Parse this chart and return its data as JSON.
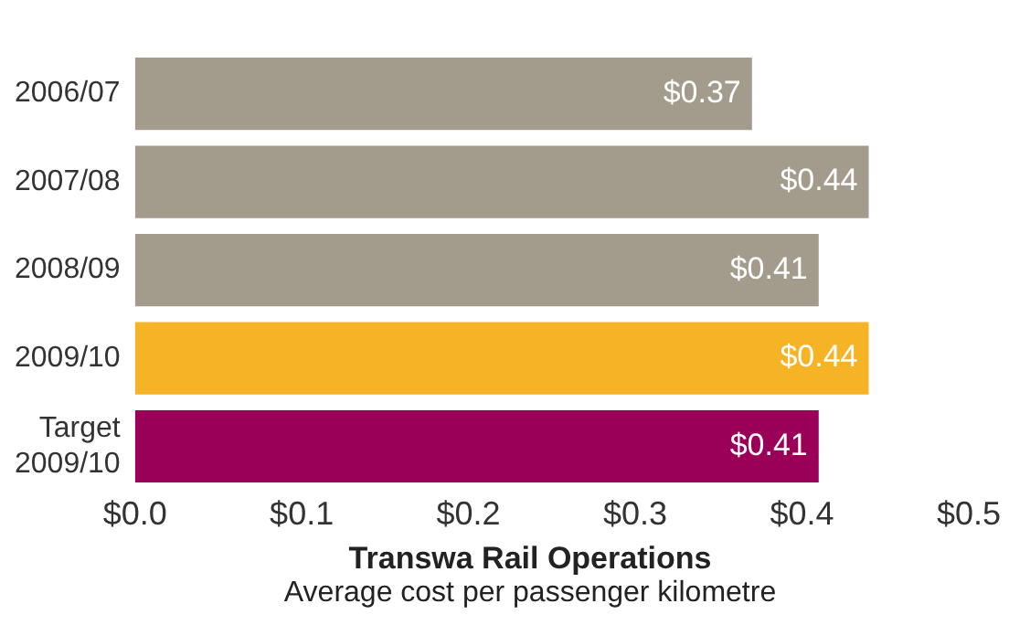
{
  "chart_data": {
    "type": "bar",
    "orientation": "horizontal",
    "xlabel": "Transwa Rail Operations",
    "subtitle": "Average cost per passenger kilometre",
    "categories": [
      "2006/07",
      "2007/08",
      "2008/09",
      "2009/10",
      "Target 2009/10"
    ],
    "values": [
      0.37,
      0.44,
      0.41,
      0.44,
      0.41
    ],
    "colors": [
      "#a39c8c",
      "#a39c8c",
      "#a39c8c",
      "#f5b325",
      "#9b0059"
    ],
    "value_labels": [
      "$0.37",
      "$0.44",
      "$0.41",
      "$0.44",
      "$0.41"
    ],
    "xlim": [
      0,
      0.5
    ],
    "xticks": [
      {
        "value": 0,
        "label": "$0.0"
      },
      {
        "value": 0.1,
        "label": "$0.1"
      },
      {
        "value": 0.2,
        "label": "$0.2"
      },
      {
        "value": 0.3,
        "label": "$0.3"
      },
      {
        "value": 0.4,
        "label": "$0.4"
      },
      {
        "value": 0.5,
        "label": "$0.5"
      }
    ],
    "grid": false,
    "legend": false
  }
}
